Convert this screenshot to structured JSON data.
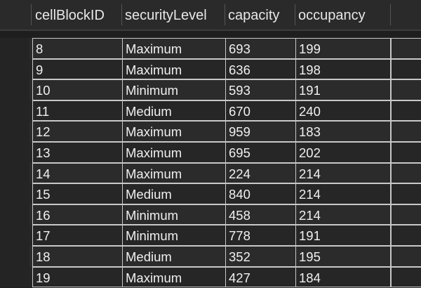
{
  "table": {
    "columns": [
      "cellBlockID",
      "securityLevel",
      "capacity",
      "occupancy"
    ],
    "rows": [
      [
        "8",
        "Maximum",
        "693",
        "199"
      ],
      [
        "9",
        "Maximum",
        "636",
        "198"
      ],
      [
        "10",
        "Minimum",
        "593",
        "191"
      ],
      [
        "11",
        "Medium",
        "670",
        "240"
      ],
      [
        "12",
        "Maximum",
        "959",
        "183"
      ],
      [
        "13",
        "Maximum",
        "695",
        "202"
      ],
      [
        "14",
        "Maximum",
        "224",
        "214"
      ],
      [
        "15",
        "Medium",
        "840",
        "214"
      ],
      [
        "16",
        "Minimum",
        "458",
        "214"
      ],
      [
        "17",
        "Minimum",
        "778",
        "191"
      ],
      [
        "18",
        "Medium",
        "352",
        "195"
      ],
      [
        "19",
        "Maximum",
        "427",
        "184"
      ]
    ]
  }
}
